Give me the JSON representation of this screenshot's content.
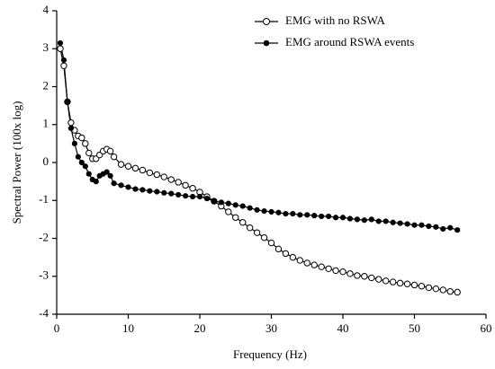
{
  "chart_data": {
    "type": "line",
    "xlabel": "Frequency (Hz)",
    "ylabel": "Spectral Power (100x log)",
    "x": [
      0.5,
      1,
      1.5,
      2,
      2.5,
      3,
      3.5,
      4,
      4.5,
      5,
      5.5,
      6,
      6.5,
      7,
      7.5,
      8,
      9,
      10,
      11,
      12,
      13,
      14,
      15,
      16,
      17,
      18,
      19,
      20,
      21,
      22,
      23,
      24,
      25,
      26,
      27,
      28,
      29,
      30,
      31,
      32,
      33,
      34,
      35,
      36,
      37,
      38,
      39,
      40,
      41,
      42,
      43,
      44,
      45,
      46,
      47,
      48,
      49,
      50,
      51,
      52,
      53,
      54,
      55,
      56
    ],
    "series": [
      {
        "name": "EMG with no RSWA",
        "color": "#000000",
        "marker": "open",
        "values": [
          3.0,
          2.55,
          1.6,
          1.05,
          0.85,
          0.7,
          0.65,
          0.5,
          0.25,
          0.1,
          0.1,
          0.2,
          0.3,
          0.35,
          0.3,
          0.15,
          -0.05,
          -0.1,
          -0.15,
          -0.2,
          -0.27,
          -0.32,
          -0.38,
          -0.45,
          -0.52,
          -0.6,
          -0.68,
          -0.78,
          -0.9,
          -1.02,
          -1.15,
          -1.3,
          -1.45,
          -1.58,
          -1.72,
          -1.85,
          -1.98,
          -2.12,
          -2.28,
          -2.4,
          -2.5,
          -2.58,
          -2.65,
          -2.7,
          -2.75,
          -2.8,
          -2.85,
          -2.88,
          -2.93,
          -2.98,
          -3.0,
          -3.04,
          -3.08,
          -3.12,
          -3.15,
          -3.18,
          -3.2,
          -3.23,
          -3.26,
          -3.3,
          -3.33,
          -3.36,
          -3.4,
          -3.42
        ]
      },
      {
        "name": "EMG around RSWA events",
        "color": "#000000",
        "marker": "filled",
        "values": [
          3.15,
          2.7,
          1.6,
          0.9,
          0.5,
          0.15,
          0,
          -0.1,
          -0.3,
          -0.45,
          -0.5,
          -0.35,
          -0.3,
          -0.25,
          -0.35,
          -0.55,
          -0.6,
          -0.65,
          -0.7,
          -0.72,
          -0.75,
          -0.77,
          -0.8,
          -0.82,
          -0.85,
          -0.88,
          -0.9,
          -0.9,
          -0.95,
          -1.02,
          -1.05,
          -1.08,
          -1.12,
          -1.15,
          -1.2,
          -1.25,
          -1.28,
          -1.3,
          -1.32,
          -1.35,
          -1.35,
          -1.38,
          -1.38,
          -1.4,
          -1.42,
          -1.42,
          -1.45,
          -1.45,
          -1.48,
          -1.5,
          -1.52,
          -1.5,
          -1.55,
          -1.55,
          -1.58,
          -1.6,
          -1.62,
          -1.65,
          -1.65,
          -1.68,
          -1.7,
          -1.75,
          -1.72,
          -1.78
        ]
      }
    ],
    "xlim": [
      0,
      60
    ],
    "xticks": [
      0,
      10,
      20,
      30,
      40,
      50,
      60
    ],
    "ylim": [
      -4,
      4
    ],
    "yticks": [
      -4,
      -3,
      -2,
      -1,
      0,
      1,
      2,
      3,
      4
    ],
    "grid": false,
    "legend": "upper right"
  }
}
